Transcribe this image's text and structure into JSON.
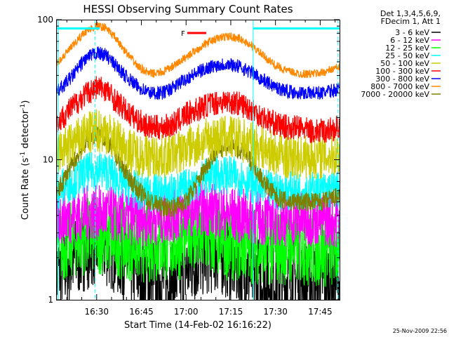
{
  "chart_data": {
    "type": "line",
    "title": "HESSI Observing Summary Count Rates",
    "xlabel": "Start Time (14-Feb-02 16:16:22)",
    "ylabel": "Count Rate (s",
    "ylabel_sup": "-1",
    "ylabel_tail": " detector",
    "ylabel_close": ")",
    "yscale": "log",
    "ylim": [
      1,
      100
    ],
    "y_ticks": [
      {
        "v": 1,
        "label": "1"
      },
      {
        "v": 10,
        "label": "10"
      },
      {
        "v": 100,
        "label": "100"
      }
    ],
    "xlim_min": [
      976.4,
      1071.5
    ],
    "x_ticks": [
      {
        "v": 990,
        "label": "16:30"
      },
      {
        "v": 1005,
        "label": "16:45"
      },
      {
        "v": 1020,
        "label": "17:00"
      },
      {
        "v": 1035,
        "label": "17:15"
      },
      {
        "v": 1050,
        "label": "17:30"
      },
      {
        "v": 1065,
        "label": "17:45"
      }
    ],
    "legend": {
      "header": [
        "Det 1,3,4,5,6,9,",
        "FDecim 1, Att 1"
      ],
      "placement": "right",
      "entries": [
        {
          "label": "3 - 6 keV",
          "color": "#000000"
        },
        {
          "label": "6 - 12 keV",
          "color": "#ff00ff"
        },
        {
          "label": "12 - 25 keV",
          "color": "#00ff00"
        },
        {
          "label": "25 - 50 keV",
          "color": "#00ffff"
        },
        {
          "label": "50 - 100 keV",
          "color": "#cccc00"
        },
        {
          "label": "100 - 300 keV",
          "color": "#ff0000"
        },
        {
          "label": "300 - 800 keV",
          "color": "#0000ff"
        },
        {
          "label": "800 - 7000 keV",
          "color": "#ff8800"
        },
        {
          "label": "7000 - 20000 keV",
          "color": "#808000"
        }
      ]
    },
    "flag_label": "F",
    "flag_color": "#ff0000",
    "series": [
      {
        "color": "#ff8800",
        "noise": 0.03,
        "points": [
          [
            976.4,
            48
          ],
          [
            982,
            65
          ],
          [
            986,
            82
          ],
          [
            990,
            90
          ],
          [
            993,
            88
          ],
          [
            996,
            75
          ],
          [
            1000,
            58
          ],
          [
            1004,
            46
          ],
          [
            1008,
            41
          ],
          [
            1012,
            42
          ],
          [
            1016,
            47
          ],
          [
            1020,
            54
          ],
          [
            1024,
            62
          ],
          [
            1028,
            70
          ],
          [
            1032,
            75
          ],
          [
            1035,
            76
          ],
          [
            1038,
            73
          ],
          [
            1042,
            65
          ],
          [
            1046,
            55
          ],
          [
            1050,
            47
          ],
          [
            1054,
            43
          ],
          [
            1058,
            41
          ],
          [
            1062,
            41
          ],
          [
            1066,
            42
          ],
          [
            1071.5,
            46
          ]
        ]
      },
      {
        "color": "#0000ff",
        "noise": 0.05,
        "points": [
          [
            976.4,
            30
          ],
          [
            982,
            40
          ],
          [
            986,
            52
          ],
          [
            990,
            58
          ],
          [
            993,
            56
          ],
          [
            996,
            48
          ],
          [
            1000,
            39
          ],
          [
            1004,
            33
          ],
          [
            1008,
            30
          ],
          [
            1012,
            30
          ],
          [
            1016,
            33
          ],
          [
            1020,
            38
          ],
          [
            1024,
            42
          ],
          [
            1028,
            46
          ],
          [
            1032,
            48
          ],
          [
            1035,
            48
          ],
          [
            1038,
            46
          ],
          [
            1042,
            42
          ],
          [
            1046,
            37
          ],
          [
            1050,
            33
          ],
          [
            1054,
            31
          ],
          [
            1058,
            30
          ],
          [
            1062,
            30
          ],
          [
            1066,
            30
          ],
          [
            1071.5,
            32
          ]
        ]
      },
      {
        "color": "#ff0000",
        "noise": 0.09,
        "points": [
          [
            976.4,
            18
          ],
          [
            982,
            24
          ],
          [
            986,
            29
          ],
          [
            990,
            33
          ],
          [
            993,
            32
          ],
          [
            996,
            27
          ],
          [
            1000,
            22
          ],
          [
            1004,
            19
          ],
          [
            1008,
            17
          ],
          [
            1012,
            17
          ],
          [
            1016,
            18
          ],
          [
            1020,
            21
          ],
          [
            1024,
            23
          ],
          [
            1028,
            25
          ],
          [
            1032,
            26
          ],
          [
            1035,
            26
          ],
          [
            1038,
            25
          ],
          [
            1042,
            23
          ],
          [
            1046,
            20
          ],
          [
            1050,
            18
          ],
          [
            1054,
            17
          ],
          [
            1058,
            17
          ],
          [
            1062,
            16
          ],
          [
            1066,
            16
          ],
          [
            1071.5,
            17
          ]
        ]
      },
      {
        "color": "#cccc00",
        "noise": 0.16,
        "points": [
          [
            976.4,
            11
          ],
          [
            982,
            13
          ],
          [
            986,
            15
          ],
          [
            990,
            16
          ],
          [
            993,
            16
          ],
          [
            996,
            14
          ],
          [
            1000,
            12
          ],
          [
            1004,
            11
          ],
          [
            1008,
            10.5
          ],
          [
            1012,
            10.5
          ],
          [
            1016,
            11
          ],
          [
            1020,
            12
          ],
          [
            1024,
            13
          ],
          [
            1028,
            14
          ],
          [
            1032,
            14.5
          ],
          [
            1035,
            14.5
          ],
          [
            1038,
            14
          ],
          [
            1042,
            13
          ],
          [
            1046,
            12
          ],
          [
            1050,
            11
          ],
          [
            1054,
            10.5
          ],
          [
            1058,
            10.5
          ],
          [
            1062,
            10.5
          ],
          [
            1066,
            10.5
          ],
          [
            1071.5,
            11
          ]
        ]
      },
      {
        "color": "#808000",
        "noise": 0.07,
        "points": [
          [
            976.4,
            5.5
          ],
          [
            980,
            8
          ],
          [
            984,
            11
          ],
          [
            987,
            14
          ],
          [
            990,
            15.5
          ],
          [
            993,
            14
          ],
          [
            996,
            11
          ],
          [
            1000,
            8
          ],
          [
            1004,
            6
          ],
          [
            1008,
            5
          ],
          [
            1012,
            4.6
          ],
          [
            1016,
            4.6
          ],
          [
            1020,
            5
          ],
          [
            1024,
            7
          ],
          [
            1028,
            10
          ],
          [
            1031,
            12
          ],
          [
            1034,
            12.5
          ],
          [
            1037,
            12
          ],
          [
            1040,
            11
          ],
          [
            1043,
            9
          ],
          [
            1046,
            7
          ],
          [
            1050,
            5.5
          ],
          [
            1054,
            5
          ],
          [
            1058,
            5
          ],
          [
            1062,
            5
          ],
          [
            1066,
            5
          ],
          [
            1071.5,
            5.5
          ]
        ]
      },
      {
        "color": "#00ffff",
        "noise": 0.14,
        "points": [
          [
            976.4,
            6
          ],
          [
            982,
            7
          ],
          [
            986,
            8
          ],
          [
            990,
            8.5
          ],
          [
            994,
            8.2
          ],
          [
            998,
            7
          ],
          [
            1002,
            6.2
          ],
          [
            1006,
            5.8
          ],
          [
            1010,
            5.8
          ],
          [
            1014,
            5.8
          ],
          [
            1018,
            6
          ],
          [
            1022,
            6.6
          ],
          [
            1026,
            7.5
          ],
          [
            1030,
            7.8
          ],
          [
            1034,
            7.8
          ],
          [
            1038,
            7.5
          ],
          [
            1042,
            6.8
          ],
          [
            1046,
            6.2
          ],
          [
            1050,
            6
          ],
          [
            1054,
            6
          ],
          [
            1058,
            6
          ],
          [
            1062,
            6
          ],
          [
            1066,
            6
          ],
          [
            1071.5,
            6.2
          ]
        ]
      },
      {
        "color": "#ff00ff",
        "noise": 0.2,
        "points": [
          [
            976.4,
            3.8
          ],
          [
            982,
            4
          ],
          [
            988,
            4.2
          ],
          [
            994,
            4.1
          ],
          [
            1000,
            3.9
          ],
          [
            1006,
            3.8
          ],
          [
            1012,
            3.9
          ],
          [
            1018,
            4.1
          ],
          [
            1022,
            4.5
          ],
          [
            1026,
            4.5
          ],
          [
            1030,
            4.3
          ],
          [
            1034,
            4.1
          ],
          [
            1040,
            3.9
          ],
          [
            1046,
            3.8
          ],
          [
            1052,
            3.8
          ],
          [
            1058,
            3.8
          ],
          [
            1064,
            3.8
          ],
          [
            1071.5,
            3.7
          ]
        ]
      },
      {
        "color": "#00ff00",
        "noise": 0.28,
        "points": [
          [
            976.4,
            2.4
          ],
          [
            982,
            2.7
          ],
          [
            988,
            2.9
          ],
          [
            994,
            2.8
          ],
          [
            1000,
            2.6
          ],
          [
            1006,
            2.5
          ],
          [
            1012,
            2.5
          ],
          [
            1018,
            2.6
          ],
          [
            1021,
            3.5
          ],
          [
            1023,
            2.8
          ],
          [
            1028,
            2.7
          ],
          [
            1034,
            2.6
          ],
          [
            1040,
            2.5
          ],
          [
            1046,
            2.4
          ],
          [
            1052,
            2.4
          ],
          [
            1058,
            2.4
          ],
          [
            1064,
            2.3
          ],
          [
            1071.5,
            2.3
          ]
        ]
      },
      {
        "color": "#000000",
        "noise": 0.3,
        "points": [
          [
            976.4,
            1.6
          ],
          [
            982,
            1.9
          ],
          [
            986,
            2.3
          ],
          [
            990,
            2.5
          ],
          [
            994,
            2.4
          ],
          [
            998,
            2.0
          ],
          [
            1002,
            1.7
          ],
          [
            1006,
            1.5
          ],
          [
            1010,
            1.4
          ],
          [
            1014,
            1.4
          ],
          [
            1018,
            1.5
          ],
          [
            1022,
            1.8
          ],
          [
            1026,
            2.1
          ],
          [
            1030,
            2.2
          ],
          [
            1034,
            2.0
          ],
          [
            1038,
            1.7
          ],
          [
            1042,
            1.5
          ],
          [
            1046,
            1.4
          ],
          [
            1050,
            1.4
          ],
          [
            1054,
            1.4
          ],
          [
            1058,
            1.4
          ],
          [
            1064,
            1.4
          ],
          [
            1071.5,
            1.4
          ]
        ]
      }
    ]
  },
  "footer": {
    "timestamp": "25-Nov-2009 22:56"
  }
}
